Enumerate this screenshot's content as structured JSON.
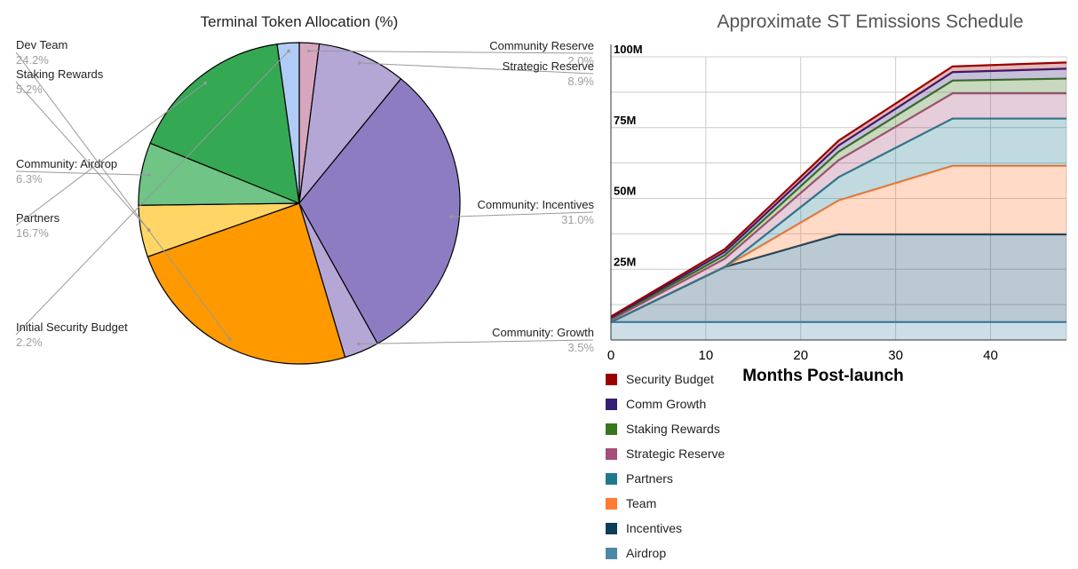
{
  "chart_data": [
    {
      "type": "pie",
      "title": "Terminal Token Allocation (%)",
      "slices": [
        {
          "label": "Community Reserve",
          "value": 2.0,
          "display": "2.0%",
          "color": "#d5a6bd"
        },
        {
          "label": "Strategic Reserve",
          "value": 8.9,
          "display": "8.9%",
          "color": "#b4a7d6"
        },
        {
          "label": "Community: Incentives",
          "value": 31.0,
          "display": "31.0%",
          "color": "#8e7cc3"
        },
        {
          "label": "Community: Growth",
          "value": 3.5,
          "display": "3.5%",
          "color": "#b4a7d6"
        },
        {
          "label": "Dev Team",
          "value": 24.2,
          "display": "24.2%",
          "color": "#ff9900"
        },
        {
          "label": "Staking Rewards",
          "value": 5.2,
          "display": "5.2%",
          "color": "#ffd666"
        },
        {
          "label": "Community: Airdrop",
          "value": 6.3,
          "display": "6.3%",
          "color": "#6fc486"
        },
        {
          "label": "Partners",
          "value": 16.7,
          "display": "16.7%",
          "color": "#34a853"
        },
        {
          "label": "Initial Security Budget",
          "value": 2.2,
          "display": "2.2%",
          "color": "#b0cbf5"
        }
      ]
    },
    {
      "type": "area",
      "stacked": true,
      "title": "Approximate ST Emissions Schedule",
      "xlabel": "Months Post-launch",
      "ylabel": "",
      "x": [
        0,
        12,
        24,
        36,
        48
      ],
      "xlim": [
        0,
        48
      ],
      "ylim": [
        0,
        100
      ],
      "x_ticks": [
        "0",
        "10",
        "20",
        "30",
        "40"
      ],
      "y_ticks": [
        "25M",
        "50M",
        "75M",
        "100M"
      ],
      "grid": true,
      "legend_position": "bottom-left",
      "series": [
        {
          "name": "Airdrop",
          "color": "#4a89a8",
          "values": [
            6.3,
            6.3,
            6.3,
            6.3,
            6.3
          ]
        },
        {
          "name": "Incentives",
          "color": "#0b3d5c",
          "values": [
            0,
            19.5,
            31,
            31,
            31
          ]
        },
        {
          "name": "Team",
          "color": "#ff7a33",
          "values": [
            0,
            0,
            12,
            24.2,
            24.2
          ]
        },
        {
          "name": "Partners",
          "color": "#1f7a8c",
          "values": [
            0,
            0,
            8.2,
            16.7,
            16.7
          ]
        },
        {
          "name": "Strategic Reserve",
          "color": "#a64d79",
          "values": [
            0.8,
            2.9,
            6.0,
            8.9,
            8.9
          ]
        },
        {
          "name": "Staking Rewards",
          "color": "#38761d",
          "values": [
            0.5,
            1.2,
            3.0,
            4.5,
            5.2
          ]
        },
        {
          "name": "Comm Growth",
          "color": "#351c75",
          "values": [
            0.3,
            1.2,
            2.2,
            3.0,
            3.5
          ]
        },
        {
          "name": "Security Budget",
          "color": "#990000",
          "values": [
            0.4,
            1.0,
            1.7,
            2.0,
            2.2
          ]
        }
      ],
      "legend_order": [
        "Security Budget",
        "Comm Growth",
        "Staking Rewards",
        "Strategic Reserve",
        "Partners",
        "Team",
        "Incentives",
        "Airdrop"
      ]
    }
  ]
}
